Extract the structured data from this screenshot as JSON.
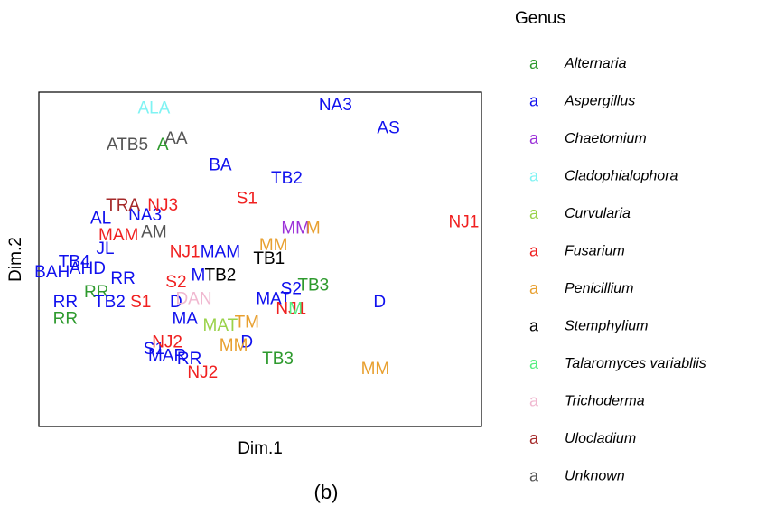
{
  "chart_data": {
    "type": "text-scatter",
    "caption": "(b)",
    "xlabel": "Dim.1",
    "ylabel": "Dim.2",
    "legend_title": "Genus",
    "legend_symbol": "a",
    "xlim": [
      0,
      100
    ],
    "ylim": [
      0,
      100
    ],
    "series": [
      {
        "name": "Alternaria",
        "color": "#2e9a2e",
        "labels": [
          "A",
          "TB3",
          "TB3",
          "RR",
          "RR"
        ],
        "x": [
          28,
          62,
          54,
          6,
          13
        ],
        "y": [
          84,
          42,
          20,
          32,
          40
        ]
      },
      {
        "name": "Aspergillus",
        "color": "#1010ee",
        "labels": [
          "NA3",
          "AS",
          "BA",
          "TB2",
          "AL",
          "NA3",
          "JL",
          "MAM",
          "TB4",
          "AHD",
          "BAH",
          "RR",
          "TB2",
          "RR",
          "MA",
          "D",
          "MAT",
          "S2",
          "D",
          "S1",
          "MAR",
          "RR",
          "D",
          "M"
        ],
        "x": [
          67,
          79,
          41,
          56,
          14,
          24,
          15,
          41,
          8,
          11,
          3,
          6,
          16,
          19,
          33,
          31,
          53,
          57,
          77,
          26,
          29,
          34,
          47,
          36
        ],
        "y": [
          96,
          89,
          78,
          74,
          62,
          63,
          53,
          52,
          49,
          47,
          46,
          37,
          37,
          44,
          32,
          37,
          38,
          41,
          37,
          23,
          21,
          20,
          25,
          45
        ]
      },
      {
        "name": "Chaetomium",
        "color": "#9b30d8",
        "labels": [
          "MM"
        ],
        "x": [
          58
        ],
        "y": [
          59
        ]
      },
      {
        "name": "Cladophialophora",
        "color": "#7ff3f3",
        "labels": [
          "ALA"
        ],
        "x": [
          26
        ],
        "y": [
          95
        ]
      },
      {
        "name": "Curvularia",
        "color": "#9ad24a",
        "labels": [
          "MAT"
        ],
        "x": [
          41
        ],
        "y": [
          30
        ]
      },
      {
        "name": "Fusarium",
        "color": "#f02020",
        "labels": [
          "S1",
          "NJ3",
          "MAM",
          "NJ1",
          "S2",
          "S1",
          "NJ1",
          "NJ2",
          "NJ2",
          "NJ1"
        ],
        "x": [
          47,
          28,
          18,
          33,
          31,
          23,
          57,
          29,
          37,
          96
        ],
        "y": [
          68,
          66,
          57,
          52,
          43,
          37,
          35,
          25,
          16,
          61
        ]
      },
      {
        "name": "Penicillium",
        "color": "#e8a030",
        "labels": [
          "MM",
          "M",
          "TM",
          "MM",
          "MM"
        ],
        "x": [
          53,
          62,
          47,
          44,
          76
        ],
        "y": [
          54,
          59,
          31,
          24,
          17
        ]
      },
      {
        "name": "Stemphylium",
        "color": "#000000",
        "labels": [
          "TB1",
          "TB2"
        ],
        "x": [
          52,
          41
        ],
        "y": [
          50,
          45
        ]
      },
      {
        "name": "Talaromyces variabliis",
        "color": "#55ee80",
        "labels": [
          "M"
        ],
        "x": [
          58
        ],
        "y": [
          35
        ]
      },
      {
        "name": "Trichoderma",
        "color": "#f0b8d0",
        "labels": [
          "DAN"
        ],
        "x": [
          35
        ],
        "y": [
          38
        ]
      },
      {
        "name": "Ulocladium",
        "color": "#a52a2a",
        "labels": [
          "TRA"
        ],
        "x": [
          19
        ],
        "y": [
          66
        ]
      },
      {
        "name": "Unknown",
        "color": "#555555",
        "labels": [
          "ATB5",
          "AA",
          "AM"
        ],
        "x": [
          20,
          31,
          26
        ],
        "y": [
          84,
          86,
          58
        ]
      }
    ]
  }
}
